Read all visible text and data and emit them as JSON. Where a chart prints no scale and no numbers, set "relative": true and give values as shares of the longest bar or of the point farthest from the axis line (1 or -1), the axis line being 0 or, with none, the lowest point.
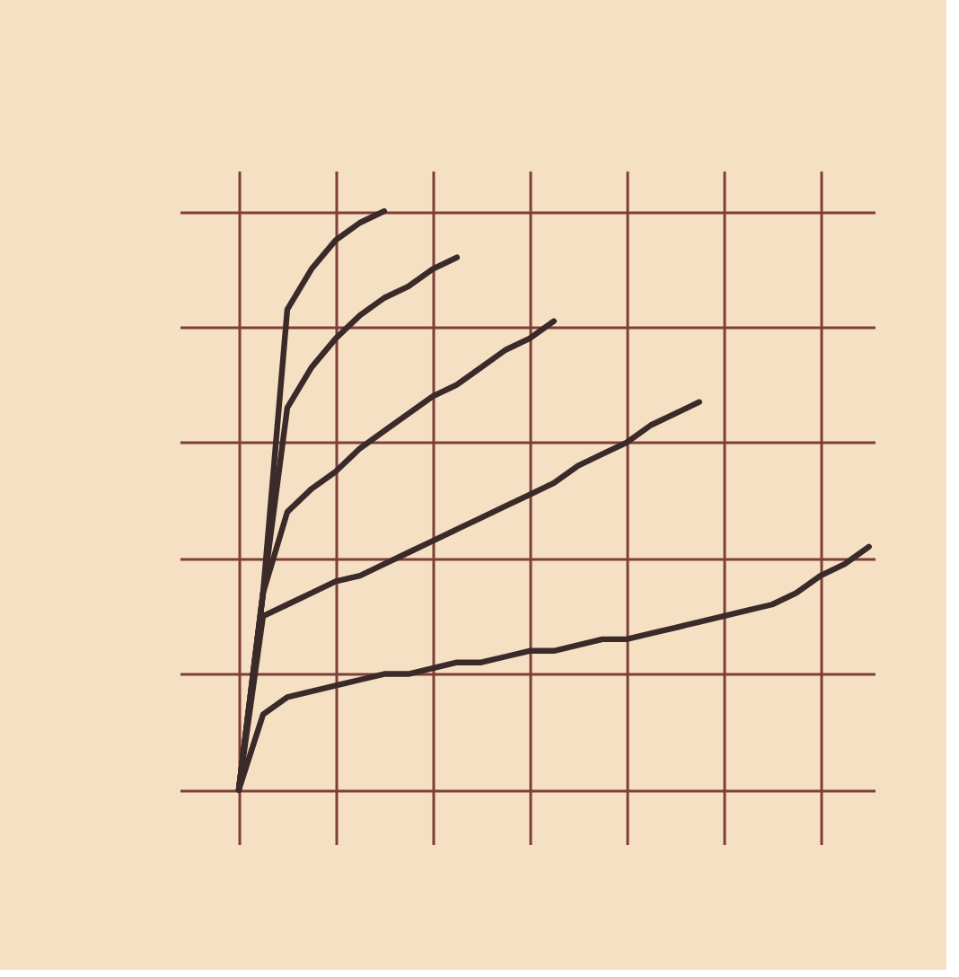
{
  "chart_data": {
    "type": "line",
    "relative": true,
    "categories": [
      null,
      null,
      null,
      null,
      null,
      null,
      null,
      null,
      null,
      null,
      null,
      null,
      null,
      null,
      null,
      null,
      null,
      null,
      null,
      null,
      null,
      null,
      null,
      null,
      null,
      null,
      null
    ],
    "grid": true,
    "legend": false,
    "marker": "none",
    "line_style": "solid",
    "tick_labels": false,
    "series": [
      {
        "color": "#3b2a2a",
        "values": [
          0,
          0.34,
          0.83,
          0.9,
          0.95,
          0.98,
          1,
          null,
          null,
          null,
          null,
          null,
          null,
          null,
          null,
          null,
          null,
          null,
          null,
          null,
          null,
          null,
          null,
          null,
          null,
          null,
          null
        ]
      },
      {
        "color": "#3b2a2a",
        "values": [
          0,
          0.34,
          0.66,
          0.73,
          0.78,
          0.82,
          0.85,
          0.87,
          0.9,
          0.92,
          null,
          null,
          null,
          null,
          null,
          null,
          null,
          null,
          null,
          null,
          null,
          null,
          null,
          null,
          null,
          null,
          null
        ]
      },
      {
        "color": "#3b2a2a",
        "values": [
          0,
          0.34,
          0.48,
          0.52,
          0.55,
          0.59,
          0.62,
          0.65,
          0.68,
          0.7,
          0.73,
          0.76,
          0.78,
          0.81,
          null,
          null,
          null,
          null,
          null,
          null,
          null,
          null,
          null,
          null,
          null,
          null,
          null
        ]
      },
      {
        "color": "#3b2a2a",
        "values": [
          0,
          0.3,
          0.32,
          0.34,
          0.36,
          0.37,
          0.39,
          0.41,
          0.43,
          0.45,
          0.47,
          0.49,
          0.51,
          0.53,
          0.56,
          0.58,
          0.6,
          0.63,
          0.65,
          0.67,
          null,
          null,
          null,
          null,
          null,
          null,
          null
        ]
      },
      {
        "color": "#3b2a2a",
        "values": [
          0,
          0.13,
          0.16,
          0.17,
          0.18,
          0.19,
          0.2,
          0.2,
          0.21,
          0.22,
          0.22,
          0.23,
          0.24,
          0.24,
          0.25,
          0.26,
          0.26,
          0.27,
          0.28,
          0.29,
          0.3,
          0.31,
          0.32,
          0.34,
          0.37,
          0.39,
          0.42
        ]
      }
    ]
  }
}
